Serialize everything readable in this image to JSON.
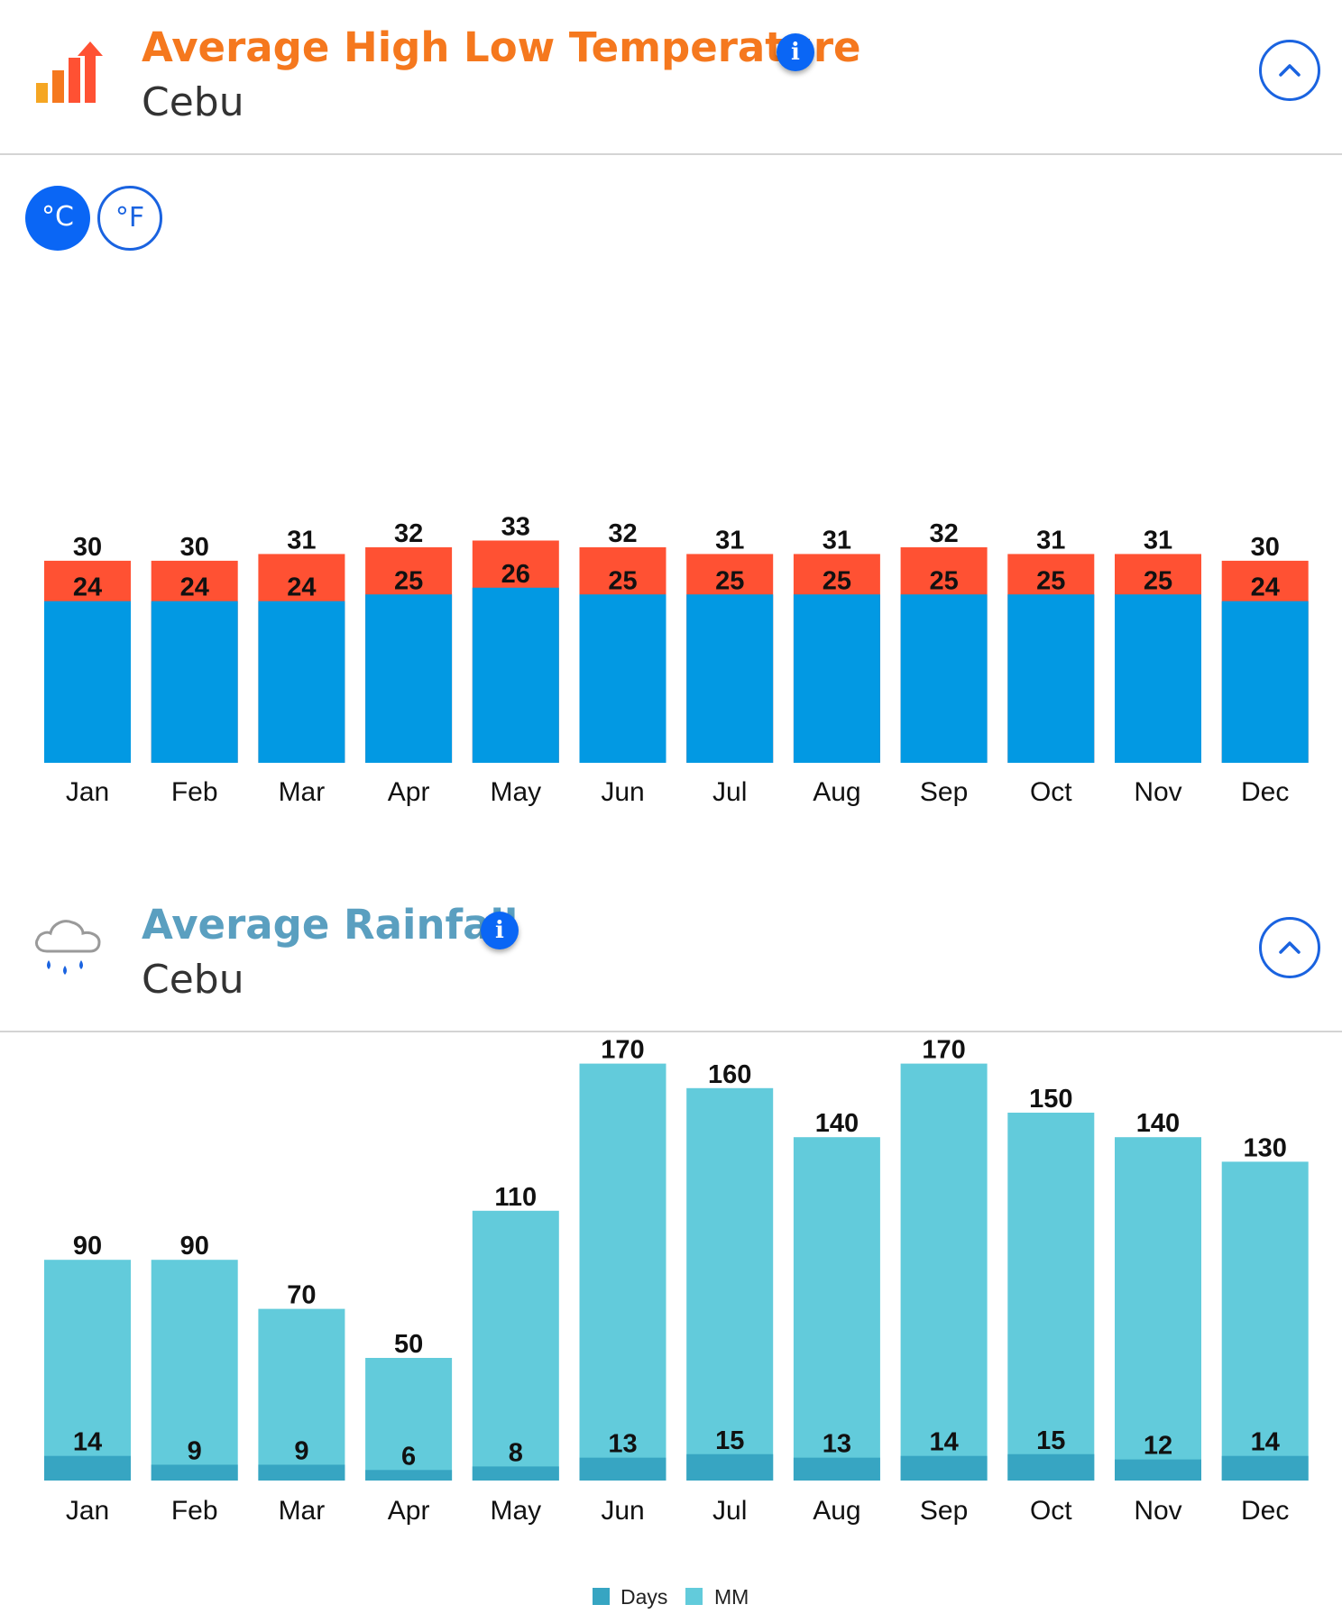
{
  "temperature": {
    "title": "Average High Low Temperature",
    "subtitle": "Cebu",
    "info_label": "i",
    "units": {
      "celsius": "°C",
      "fahrenheit": "°F",
      "active": "celsius"
    },
    "colors": {
      "title": "#f5781e",
      "high": "#ff5133",
      "low": "#0299e3",
      "info": "#0a66f5"
    },
    "icon": "bar-chart-up-icon"
  },
  "rainfall": {
    "title": "Average Rainfall",
    "subtitle": "Cebu",
    "info_label": "i",
    "colors": {
      "title": "#5a9fc0",
      "mm": "#62cbdb",
      "days": "#37a5c2"
    },
    "icon": "rain-cloud-icon",
    "legend": {
      "days": "Days",
      "mm": "MM"
    }
  },
  "chart_data": [
    {
      "type": "bar",
      "categories": [
        "Jan",
        "Feb",
        "Mar",
        "Apr",
        "May",
        "Jun",
        "Jul",
        "Aug",
        "Sep",
        "Oct",
        "Nov",
        "Dec"
      ],
      "series": [
        {
          "values": [
            30,
            30,
            31,
            32,
            33,
            32,
            31,
            31,
            32,
            31,
            31,
            30
          ]
        },
        {
          "values": [
            24,
            24,
            24,
            25,
            26,
            25,
            25,
            25,
            25,
            25,
            25,
            24
          ]
        }
      ],
      "ylim": [
        0,
        35
      ],
      "grid": false,
      "data_labels": true
    },
    {
      "type": "bar",
      "categories": [
        "Jan",
        "Feb",
        "Mar",
        "Apr",
        "May",
        "Jun",
        "Jul",
        "Aug",
        "Sep",
        "Oct",
        "Nov",
        "Dec"
      ],
      "series": [
        {
          "name": "Days",
          "values": [
            14,
            9,
            9,
            6,
            8,
            13,
            15,
            13,
            14,
            15,
            12,
            14
          ]
        },
        {
          "name": "MM",
          "values": [
            90,
            90,
            70,
            50,
            110,
            170,
            160,
            140,
            170,
            150,
            140,
            130
          ]
        }
      ],
      "ylim": [
        0,
        170
      ],
      "legend": "bottom-center",
      "grid": false,
      "data_labels": true
    }
  ]
}
